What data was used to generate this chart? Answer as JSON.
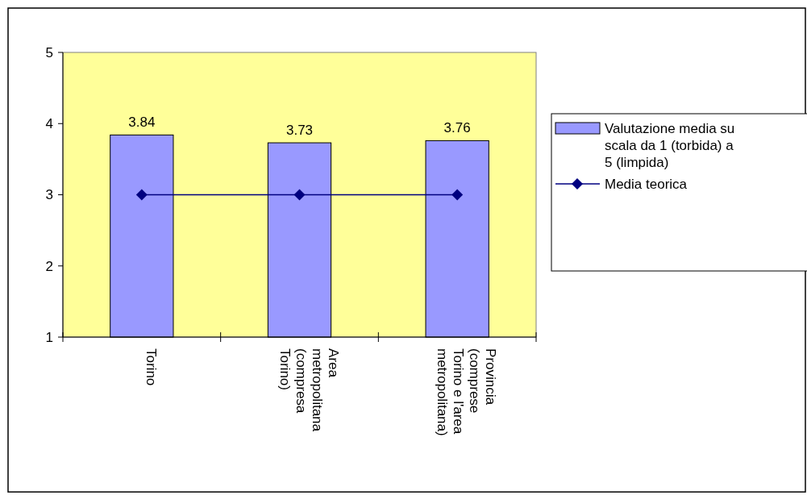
{
  "chart_data": {
    "type": "bar",
    "categories": [
      "Torino",
      "Area metropolitana (compresa Torino)",
      "Provincia (comprese Torino e l'area metropolitana)"
    ],
    "series": [
      {
        "name": "Valutazione media su scala da 1 (torbida) a 5 (limpida)",
        "color": "#9999ff",
        "values": [
          3.84,
          3.73,
          3.76
        ],
        "value_labels": [
          "3.84",
          "3.73",
          "3.76"
        ]
      },
      {
        "name": "Media teorica",
        "type": "line",
        "color": "#000080",
        "values": [
          3,
          3,
          3
        ],
        "marker": "diamond"
      }
    ],
    "ylim": [
      1,
      5
    ],
    "yticks": [
      1,
      2,
      3,
      4,
      5
    ],
    "grid": false,
    "legend": "right"
  }
}
